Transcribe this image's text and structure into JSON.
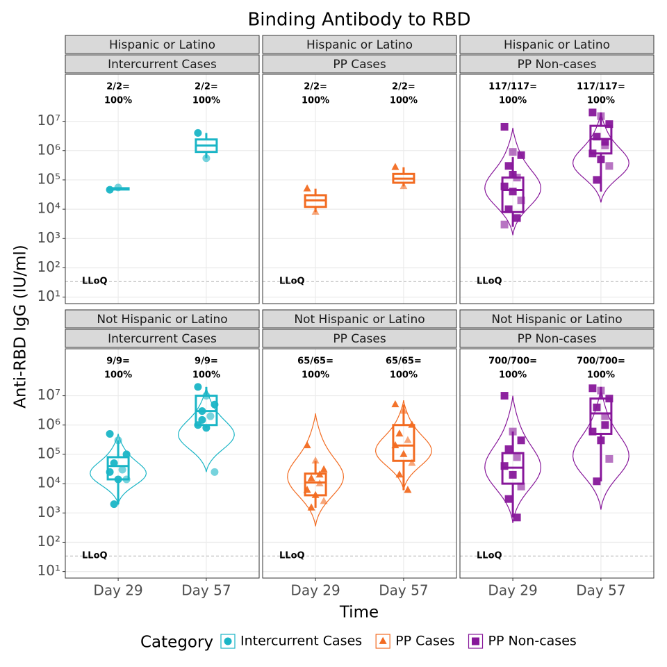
{
  "chart_data": {
    "type": "boxplot",
    "title": "Binding Antibody to RBD",
    "x_label": "Time",
    "y_label": "Anti-RBD IgG (IU/ml)",
    "log_y": true,
    "grid": true,
    "legend_title": "Category",
    "legend_position": "bottom",
    "ylim": [
      6,
      400000000
    ],
    "yticks": [
      {
        "value": 10,
        "label": "10¹"
      },
      {
        "value": 100,
        "label": "10²"
      },
      {
        "value": 1000,
        "label": "10³"
      },
      {
        "value": 10000,
        "label": "10⁴"
      },
      {
        "value": 100000,
        "label": "10⁵"
      },
      {
        "value": 1000000,
        "label": "10⁶"
      },
      {
        "value": 10000000,
        "label": "10⁷"
      }
    ],
    "categories": [
      "Day 29",
      "Day 57"
    ],
    "lloq": {
      "value": 34,
      "label": "LLoQ"
    },
    "series": [
      {
        "name": "Intercurrent Cases",
        "color": "#1ab5c6",
        "marker": "circle"
      },
      {
        "name": "PP Cases",
        "color": "#f26b21",
        "marker": "triangle"
      },
      {
        "name": "PP Non-cases",
        "color": "#87179a",
        "marker": "square"
      }
    ],
    "panels": [
      {
        "group": "Hispanic or Latino",
        "category": "Intercurrent Cases",
        "days": [
          {
            "count_label": "2/2=",
            "pct_label": "100%",
            "points": [
              46000,
              55000
            ],
            "box": {
              "whisker_low": 46000,
              "q1": 47000,
              "median": 49000,
              "q3": 52000,
              "whisker_high": 55000
            }
          },
          {
            "count_label": "2/2=",
            "pct_label": "100%",
            "points": [
              4000000,
              550000
            ],
            "box": {
              "whisker_low": 550000,
              "q1": 900000,
              "median": 1500000,
              "q3": 2400000,
              "whisker_high": 4000000
            }
          }
        ]
      },
      {
        "group": "Hispanic or Latino",
        "category": "PP Cases",
        "days": [
          {
            "count_label": "2/2=",
            "pct_label": "100%",
            "points": [
              50000,
              8000
            ],
            "box": {
              "whisker_low": 8000,
              "q1": 12000,
              "median": 20000,
              "q3": 30000,
              "whisker_high": 50000
            }
          },
          {
            "count_label": "2/2=",
            "pct_label": "100%",
            "points": [
              270000,
              60000
            ],
            "box": {
              "whisker_low": 60000,
              "q1": 80000,
              "median": 110000,
              "q3": 160000,
              "whisker_high": 270000
            }
          }
        ]
      },
      {
        "group": "Hispanic or Latino",
        "category": "PP Non-cases",
        "days": [
          {
            "count_label": "117/117=",
            "pct_label": "100%",
            "points": [
              6500000,
              900000,
              700000,
              300000,
              120000,
              60000,
              40000,
              20000,
              10000,
              5000,
              3000,
              150000
            ],
            "box": {
              "whisker_low": 2500,
              "q1": 8000,
              "median": 45000,
              "q3": 120000,
              "whisker_high": 600000
            },
            "violin": [
              1300,
              6000000
            ]
          },
          {
            "count_label": "117/117=",
            "pct_label": "100%",
            "points": [
              20000000,
              15000000,
              8000000,
              3000000,
              1500000,
              800000,
              500000,
              300000,
              100000,
              2000000
            ],
            "box": {
              "whisker_low": 40000,
              "q1": 800000,
              "median": 2500000,
              "q3": 7000000,
              "whisker_high": 20000000
            },
            "violin": [
              17000,
              20000000
            ]
          }
        ]
      },
      {
        "group": "Not Hispanic or Latino",
        "category": "Intercurrent Cases",
        "days": [
          {
            "count_label": "9/9=",
            "pct_label": "100%",
            "points": [
              500000,
              300000,
              100000,
              50000,
              30000,
              25000,
              14000,
              14000,
              2000
            ],
            "box": {
              "whisker_low": 2000,
              "q1": 14000,
              "median": 40000,
              "q3": 80000,
              "whisker_high": 300000
            },
            "violin": [
              2000,
              500000
            ]
          },
          {
            "count_label": "9/9=",
            "pct_label": "100%",
            "points": [
              20000000,
              10000000,
              5000000,
              3000000,
              2000000,
              1000000,
              800000,
              25000,
              1500000
            ],
            "box": {
              "whisker_low": 800000,
              "q1": 1000000,
              "median": 3000000,
              "q3": 10000000,
              "whisker_high": 20000000
            },
            "violin": [
              25000,
              20000000
            ]
          }
        ]
      },
      {
        "group": "Not Hispanic or Latino",
        "category": "PP Cases",
        "days": [
          {
            "count_label": "65/65=",
            "pct_label": "100%",
            "points": [
              200000,
              60000,
              30000,
              15000,
              10000,
              6000,
              4000,
              2500,
              1500,
              20000
            ],
            "box": {
              "whisker_low": 1500,
              "q1": 4000,
              "median": 11000,
              "q3": 22000,
              "whisker_high": 60000
            },
            "violin": [
              350,
              2500000
            ]
          },
          {
            "count_label": "65/65=",
            "pct_label": "100%",
            "points": [
              5000000,
              3000000,
              1000000,
              500000,
              300000,
              200000,
              100000,
              50000,
              20000,
              6000
            ],
            "box": {
              "whisker_low": 6000,
              "q1": 60000,
              "median": 200000,
              "q3": 1000000,
              "whisker_high": 5000000
            },
            "violin": [
              6000,
              7000000
            ]
          }
        ]
      },
      {
        "group": "Not Hispanic or Latino",
        "category": "PP Non-cases",
        "days": [
          {
            "count_label": "700/700=",
            "pct_label": "100%",
            "points": [
              10000000,
              600000,
              300000,
              150000,
              80000,
              40000,
              20000,
              8000,
              3000,
              700
            ],
            "box": {
              "whisker_low": 700,
              "q1": 10000,
              "median": 35000,
              "q3": 110000,
              "whisker_high": 600000
            },
            "violin": [
              450,
              10000000
            ]
          },
          {
            "count_label": "700/700=",
            "pct_label": "100%",
            "points": [
              18000000,
              15000000,
              8000000,
              4000000,
              2000000,
              600000,
              300000,
              70000,
              12000,
              1000000
            ],
            "box": {
              "whisker_low": 12000,
              "q1": 500000,
              "median": 2500000,
              "q3": 8000000,
              "whisker_high": 20000000
            },
            "violin": [
              1300,
              20000000
            ]
          }
        ]
      }
    ]
  }
}
